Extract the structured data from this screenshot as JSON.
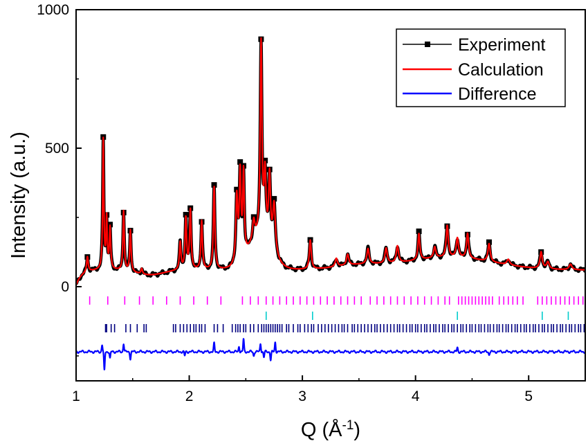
{
  "chart_data": {
    "type": "line",
    "title": "",
    "xlabel": "Q (Å⁻¹)",
    "xlabel_parts": {
      "main": "Q (Å",
      "sup": "-1",
      "end": ")"
    },
    "ylabel": "Intensity (a.u.)",
    "xlim": [
      1.0,
      5.5
    ],
    "ylim": [
      -340,
      1000
    ],
    "x_ticks": [
      1,
      2,
      3,
      4,
      5
    ],
    "x_tick_labels": [
      "1",
      "2",
      "3",
      "4",
      "5"
    ],
    "y_ticks": [
      0,
      500,
      1000
    ],
    "y_tick_labels": [
      "0",
      "500",
      "1000"
    ],
    "grid": false,
    "legend": {
      "position": "top-right",
      "entries": [
        "Experiment",
        "Calculation",
        "Difference"
      ]
    },
    "colors": {
      "experiment": "#000000",
      "calculation": "#ff0000",
      "difference": "#0000ff",
      "ticks_phase1": "#ff00ff",
      "ticks_phase2": "#00cccc",
      "ticks_phase3": "#000080"
    },
    "background": 60,
    "peaks": [
      {
        "q": 1.1,
        "h": 55,
        "w": 0.008
      },
      {
        "q": 1.24,
        "h": 470,
        "w": 0.006
      },
      {
        "q": 1.27,
        "h": 180,
        "w": 0.006
      },
      {
        "q": 1.3,
        "h": 150,
        "w": 0.007
      },
      {
        "q": 1.42,
        "h": 215,
        "w": 0.007
      },
      {
        "q": 1.48,
        "h": 150,
        "w": 0.007
      },
      {
        "q": 1.58,
        "h": 20,
        "w": 0.008
      },
      {
        "q": 1.92,
        "h": 100,
        "w": 0.008
      },
      {
        "q": 1.97,
        "h": 185,
        "w": 0.008
      },
      {
        "q": 2.01,
        "h": 215,
        "w": 0.008
      },
      {
        "q": 2.11,
        "h": 175,
        "w": 0.008
      },
      {
        "q": 2.22,
        "h": 300,
        "w": 0.008
      },
      {
        "q": 2.42,
        "h": 240,
        "w": 0.01
      },
      {
        "q": 2.45,
        "h": 310,
        "w": 0.009
      },
      {
        "q": 2.48,
        "h": 300,
        "w": 0.008
      },
      {
        "q": 2.57,
        "h": 70,
        "w": 0.012
      },
      {
        "q": 2.635,
        "h": 700,
        "w": 0.009
      },
      {
        "q": 2.67,
        "h": 230,
        "w": 0.01
      },
      {
        "q": 2.71,
        "h": 250,
        "w": 0.01
      },
      {
        "q": 2.75,
        "h": 180,
        "w": 0.014
      },
      {
        "q": 3.07,
        "h": 105,
        "w": 0.01
      },
      {
        "q": 3.3,
        "h": 30,
        "w": 0.012
      },
      {
        "q": 3.4,
        "h": 40,
        "w": 0.012
      },
      {
        "q": 3.58,
        "h": 55,
        "w": 0.012
      },
      {
        "q": 3.74,
        "h": 55,
        "w": 0.012
      },
      {
        "q": 3.84,
        "h": 60,
        "w": 0.012
      },
      {
        "q": 4.03,
        "h": 95,
        "w": 0.01
      },
      {
        "q": 4.17,
        "h": 40,
        "w": 0.012
      },
      {
        "q": 4.28,
        "h": 115,
        "w": 0.011
      },
      {
        "q": 4.37,
        "h": 70,
        "w": 0.012
      },
      {
        "q": 4.46,
        "h": 90,
        "w": 0.011
      },
      {
        "q": 4.65,
        "h": 65,
        "w": 0.012
      },
      {
        "q": 4.82,
        "h": 20,
        "w": 0.015
      },
      {
        "q": 5.11,
        "h": 60,
        "w": 0.012
      },
      {
        "q": 5.17,
        "h": 25,
        "w": 0.014
      },
      {
        "q": 5.37,
        "h": 20,
        "w": 0.015
      }
    ],
    "bumps": [
      {
        "q": 2.62,
        "h": 110,
        "w": 0.14
      },
      {
        "q": 4.3,
        "h": 45,
        "w": 0.55
      },
      {
        "q": 3.5,
        "h": 15,
        "w": 0.3
      }
    ],
    "experiment_markers_q": [
      1.1,
      1.24,
      1.27,
      1.3,
      1.42,
      1.48,
      1.97,
      2.01,
      2.11,
      2.22,
      2.42,
      2.45,
      2.48,
      2.57,
      2.635,
      2.67,
      2.71,
      2.75,
      3.07,
      4.03,
      4.28,
      4.46,
      4.65,
      5.11
    ],
    "difference_offset": -235,
    "difference_spikes": [
      {
        "q": 1.23,
        "d": 25
      },
      {
        "q": 1.25,
        "d": -70
      },
      {
        "q": 1.3,
        "d": -25
      },
      {
        "q": 1.42,
        "d": 30
      },
      {
        "q": 1.48,
        "d": -25
      },
      {
        "q": 1.96,
        "d": -15
      },
      {
        "q": 2.22,
        "d": 30
      },
      {
        "q": 2.44,
        "d": 20
      },
      {
        "q": 2.48,
        "d": 45
      },
      {
        "q": 2.57,
        "d": -15
      },
      {
        "q": 2.63,
        "d": 30
      },
      {
        "q": 2.66,
        "d": -20
      },
      {
        "q": 2.72,
        "d": -30
      },
      {
        "q": 2.76,
        "d": 35
      },
      {
        "q": 4.37,
        "d": 15
      },
      {
        "q": 4.65,
        "d": -10
      }
    ],
    "reflection_ticks": {
      "phase1": {
        "y": -50,
        "q": [
          1.12,
          1.28,
          1.43,
          1.56,
          1.68,
          1.8,
          1.92,
          2.04,
          2.16,
          2.28,
          2.47,
          2.54,
          2.61,
          2.68,
          2.74,
          2.8,
          2.86,
          2.92,
          2.98,
          3.04,
          3.1,
          3.16,
          3.22,
          3.28,
          3.34,
          3.4,
          3.46,
          3.52,
          3.6,
          3.66,
          3.72,
          3.78,
          3.84,
          3.9,
          3.96,
          4.02,
          4.08,
          4.14,
          4.2,
          4.26,
          4.3,
          4.38,
          4.41,
          4.44,
          4.47,
          4.5,
          4.53,
          4.56,
          4.59,
          4.62,
          4.65,
          4.68,
          4.74,
          4.78,
          4.82,
          4.86,
          4.9,
          4.95,
          5.08,
          5.12,
          5.16,
          5.2,
          5.24,
          5.28,
          5.32,
          5.36,
          5.4,
          5.44,
          5.48
        ]
      },
      "phase2": {
        "y": -105,
        "q": [
          2.68,
          3.09,
          4.37,
          5.12,
          5.35
        ]
      },
      "phase3": {
        "y": -150,
        "q": [
          1.26,
          1.27,
          1.31,
          1.34,
          1.44,
          1.48,
          1.54,
          1.6,
          1.62,
          1.86,
          1.88,
          1.92,
          1.95,
          1.98,
          2.01,
          2.04,
          2.06,
          2.09,
          2.11,
          2.14,
          2.22,
          2.25,
          2.3,
          2.38,
          2.41,
          2.43,
          2.45,
          2.48,
          2.5,
          2.54,
          2.57,
          2.61,
          2.64,
          2.66,
          2.68,
          2.7,
          2.72,
          2.74,
          2.76,
          2.78,
          2.8,
          2.82,
          2.86,
          2.88,
          2.92,
          2.96,
          2.98,
          3.02,
          3.05,
          3.08,
          3.1,
          3.14,
          3.17,
          3.2,
          3.23,
          3.26,
          3.29,
          3.32,
          3.35,
          3.37,
          3.4,
          3.44,
          3.46,
          3.49,
          3.52,
          3.55,
          3.58,
          3.61,
          3.64,
          3.66,
          3.69,
          3.72,
          3.75,
          3.78,
          3.81,
          3.84,
          3.86,
          3.89,
          3.92,
          3.95,
          3.97,
          4.0,
          4.02,
          4.05,
          4.08,
          4.1,
          4.13,
          4.16,
          4.18,
          4.21,
          4.24,
          4.26,
          4.29,
          4.32,
          4.34,
          4.37,
          4.4,
          4.42,
          4.45,
          4.48,
          4.5,
          4.53,
          4.56,
          4.58,
          4.61,
          4.64,
          4.66,
          4.69,
          4.72,
          4.74,
          4.77,
          4.8,
          4.82,
          4.85,
          4.88,
          4.9,
          4.93,
          4.96,
          4.98,
          5.01,
          5.04,
          5.06,
          5.09,
          5.12,
          5.14,
          5.17,
          5.2,
          5.22,
          5.25,
          5.28,
          5.3,
          5.33,
          5.36,
          5.38,
          5.41,
          5.44,
          5.46,
          5.49
        ]
      }
    }
  }
}
